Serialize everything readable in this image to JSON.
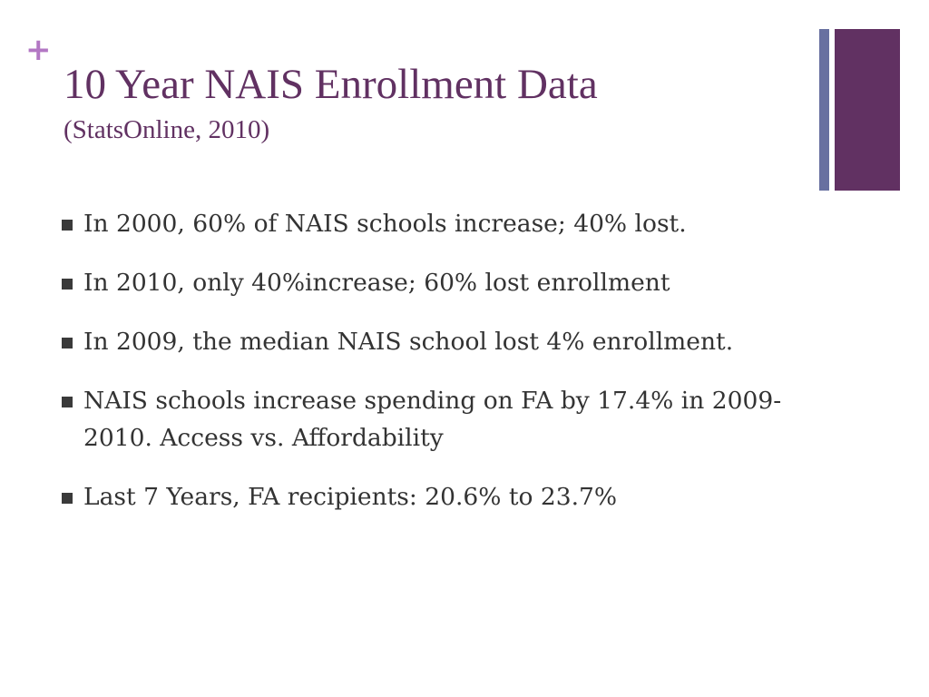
{
  "slide": {
    "plus_glyph": "+",
    "title": "10 Year NAIS Enrollment Data",
    "subtitle": "(StatsOnline, 2010)",
    "bullets": [
      {
        "text": "In 2000, 60% of NAIS schools increase; 40% lost."
      },
      {
        "text": "In 2010, only 40%increase; 60% lost enrollment"
      },
      {
        "text": "In 2009, the median NAIS school lost 4% enrollment."
      },
      {
        "text": "NAIS schools increase spending on FA by 17.4% in 2009-2010.  Access vs. Affordability"
      },
      {
        "text": "Last 7 Years, FA recipients: 20.6% to 23.7%"
      }
    ]
  },
  "colors": {
    "title": "#613162",
    "plus_mark": "#b377c4",
    "deco_thin_bar": "#6870a0",
    "deco_thick_bar": "#613162",
    "body_text": "#333333",
    "bullet_marker": "#3a3a3a"
  }
}
